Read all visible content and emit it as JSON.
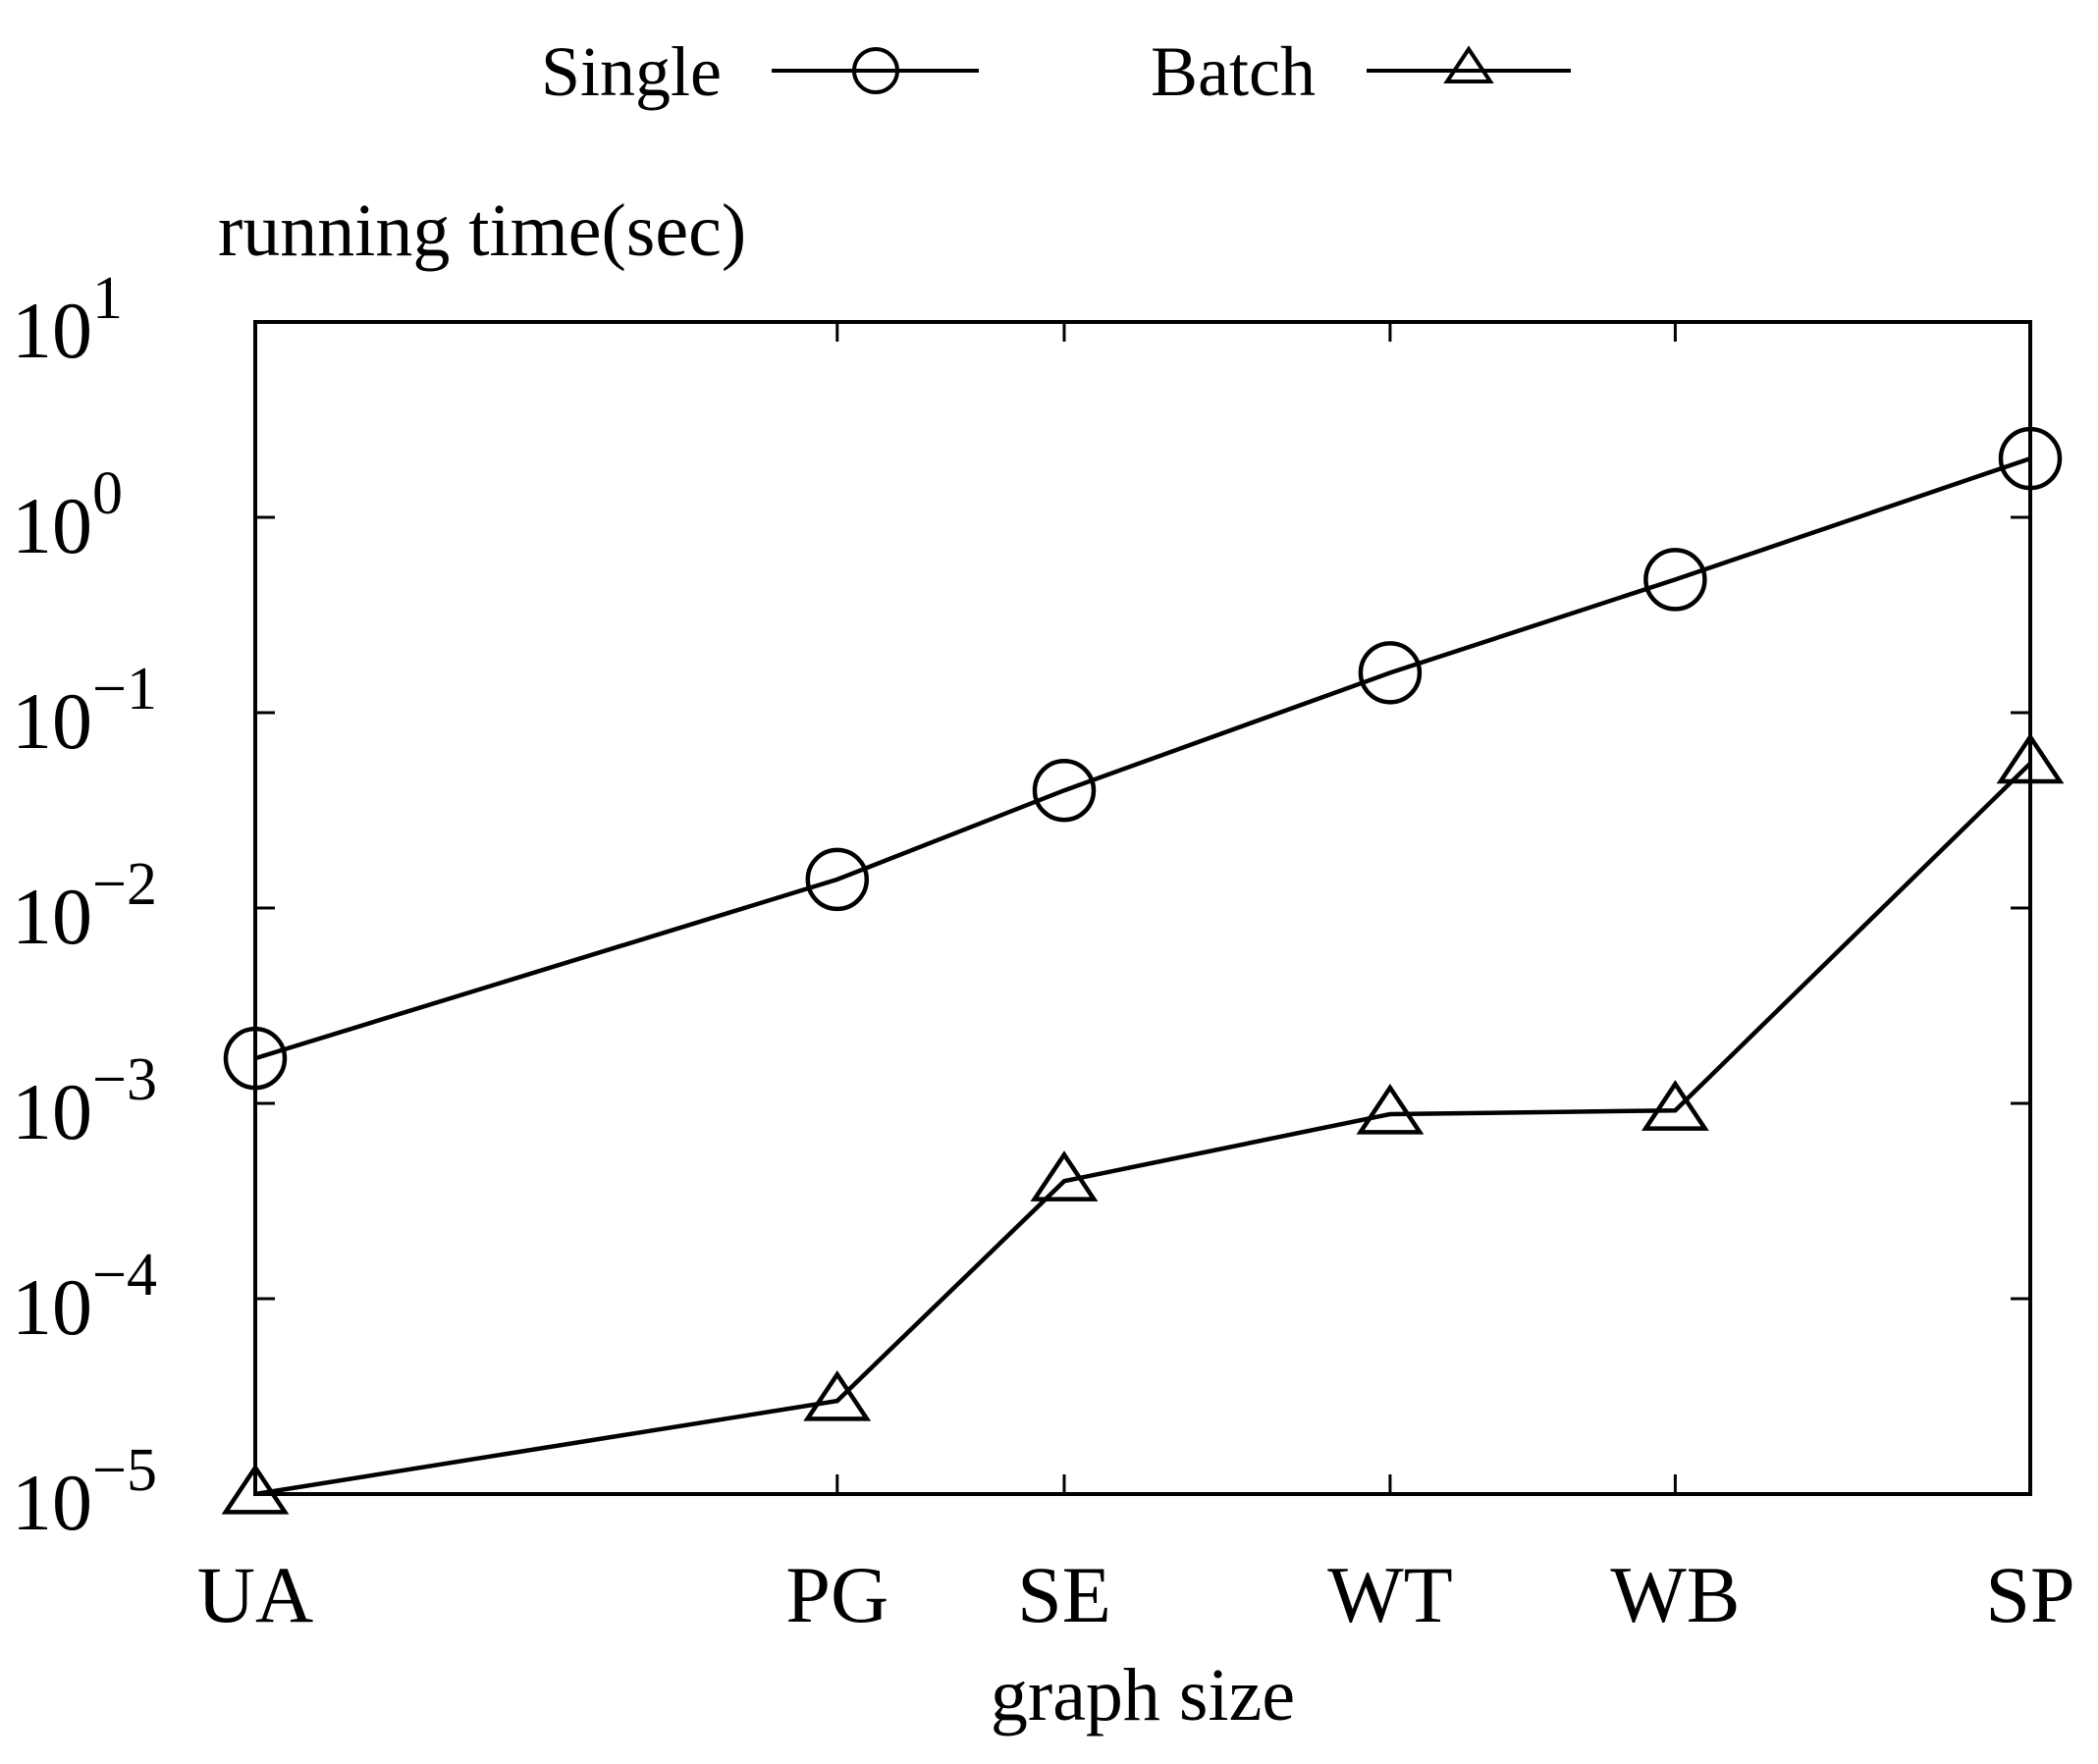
{
  "chart_data": {
    "type": "line",
    "title": "",
    "ylabel": "running time(sec)",
    "xlabel": "graph size",
    "yscale": "log",
    "ylim": [
      1e-05,
      10
    ],
    "yticks": [
      {
        "value": 10,
        "base": "10",
        "exp": "1"
      },
      {
        "value": 1,
        "base": "10",
        "exp": "0"
      },
      {
        "value": 0.1,
        "base": "10",
        "exp": "−1"
      },
      {
        "value": 0.01,
        "base": "10",
        "exp": "−2"
      },
      {
        "value": 0.001,
        "base": "10",
        "exp": "−3"
      },
      {
        "value": 0.0001,
        "base": "10",
        "exp": "−4"
      },
      {
        "value": 1e-05,
        "base": "10",
        "exp": "−5"
      }
    ],
    "x_scale_note": "categories placed by relative graph size",
    "xlim": [
      0,
      3.05
    ],
    "categories": [
      "UA",
      "PG",
      "SE",
      "WT",
      "WB",
      "SP"
    ],
    "x": [
      0,
      1.0,
      1.39,
      1.95,
      2.44,
      3.05
    ],
    "series": [
      {
        "name": "Single",
        "marker": "circle",
        "values": [
          0.0017,
          0.014,
          0.04,
          0.16,
          0.48,
          2.0
        ]
      },
      {
        "name": "Batch",
        "marker": "triangle",
        "values": [
          1e-05,
          3e-05,
          0.0004,
          0.00088,
          0.00092,
          0.055
        ]
      }
    ],
    "legend": {
      "position": "top-center",
      "entries": [
        "Single",
        "Batch"
      ]
    },
    "grid": false
  }
}
